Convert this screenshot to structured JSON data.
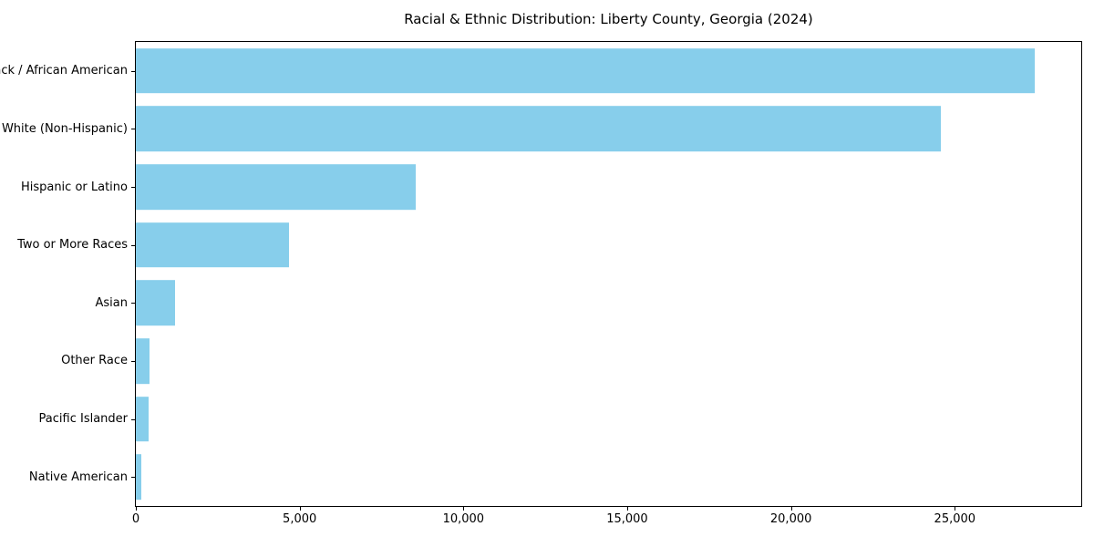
{
  "chart_data": {
    "type": "bar",
    "orientation": "horizontal",
    "title": "Racial & Ethnic Distribution: Liberty County, Georgia (2024)",
    "categories": [
      "Black / African American",
      "White (Non-Hispanic)",
      "Hispanic or Latino",
      "Two or More Races",
      "Asian",
      "Other Race",
      "Pacific Islander",
      "Native American"
    ],
    "values": [
      27450,
      24580,
      8530,
      4670,
      1190,
      420,
      390,
      170
    ],
    "bar_color": "#87CEEB",
    "xlabel": "",
    "ylabel": "",
    "xlim": [
      0,
      28860
    ],
    "x_ticks": [
      0,
      5000,
      10000,
      15000,
      20000,
      25000
    ],
    "x_tick_labels": [
      "0",
      "5,000",
      "10,000",
      "15,000",
      "20,000",
      "25,000"
    ],
    "grid": false,
    "legend": "none"
  }
}
